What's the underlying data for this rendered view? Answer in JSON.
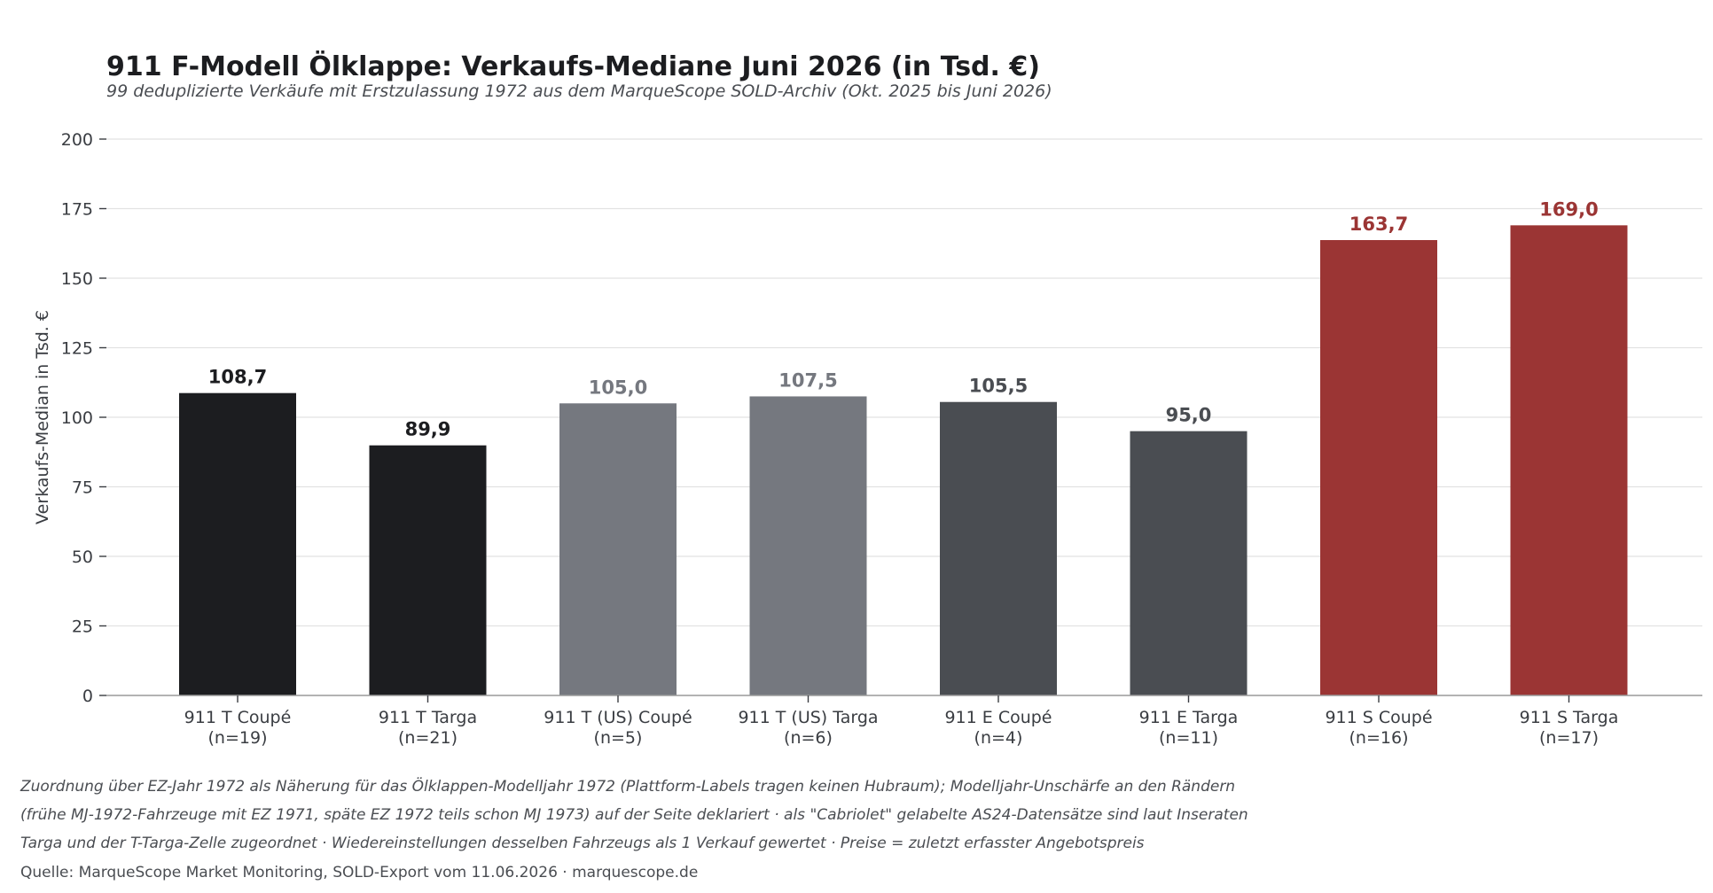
{
  "colors": {
    "T": "#1c1d20",
    "T_US": "#75787f",
    "E": "#4a4d52",
    "S": "#9b3534",
    "grid": "#e2e2e2",
    "axis": "#9a9a9a",
    "tick_text": "#3a3d42"
  },
  "chart_data": {
    "type": "bar",
    "title": "911 F-Modell Ölklappe: Verkaufs-Mediane Juni 2026 (in Tsd. €)",
    "subtitle": "99 deduplizierte Verkäufe mit Erstzulassung 1972 aus dem MarqueScope SOLD-Archiv (Okt. 2025 bis Juni 2026)",
    "ylabel": "Verkaufs-Median in Tsd. €",
    "ylim": [
      0,
      200
    ],
    "yticks": [
      0,
      25,
      50,
      75,
      100,
      125,
      150,
      175,
      200
    ],
    "grid": true,
    "bars": [
      {
        "model": "911 T Coupé",
        "n": "(n=19)",
        "value": 108.7,
        "label": "108,7",
        "group": "T"
      },
      {
        "model": "911 T Targa",
        "n": "(n=21)",
        "value": 89.9,
        "label": "89,9",
        "group": "T"
      },
      {
        "model": "911 T (US) Coupé",
        "n": "(n=5)",
        "value": 105.0,
        "label": "105,0",
        "group": "T_US"
      },
      {
        "model": "911 T (US) Targa",
        "n": "(n=6)",
        "value": 107.5,
        "label": "107,5",
        "group": "T_US"
      },
      {
        "model": "911 E Coupé",
        "n": "(n=4)",
        "value": 105.5,
        "label": "105,5",
        "group": "E"
      },
      {
        "model": "911 E Targa",
        "n": "(n=11)",
        "value": 95.0,
        "label": "95,0",
        "group": "E"
      },
      {
        "model": "911 S Coupé",
        "n": "(n=16)",
        "value": 163.7,
        "label": "163,7",
        "group": "S"
      },
      {
        "model": "911 S Targa",
        "n": "(n=17)",
        "value": 169.0,
        "label": "169,0",
        "group": "S"
      }
    ]
  },
  "footnotes": [
    "Zuordnung über EZ-Jahr 1972 als Näherung für das Ölklappen-Modelljahr 1972 (Plattform-Labels tragen keinen Hubraum); Modelljahr-Unschärfe an den Rändern",
    "(frühe MJ-1972-Fahrzeuge mit EZ 1971, späte EZ 1972 teils schon MJ 1973) auf der Seite deklariert · als \"Cabriolet\" gelabelte AS24-Datensätze sind laut Inseraten",
    "Targa und der T-Targa-Zelle zugeordnet · Wiedereinstellungen desselben Fahrzeugs als 1 Verkauf gewertet · Preise = zuletzt erfasster Angebotspreis"
  ],
  "source": "Quelle: MarqueScope Market Monitoring, SOLD-Export vom 11.06.2026 · marquescope.de"
}
